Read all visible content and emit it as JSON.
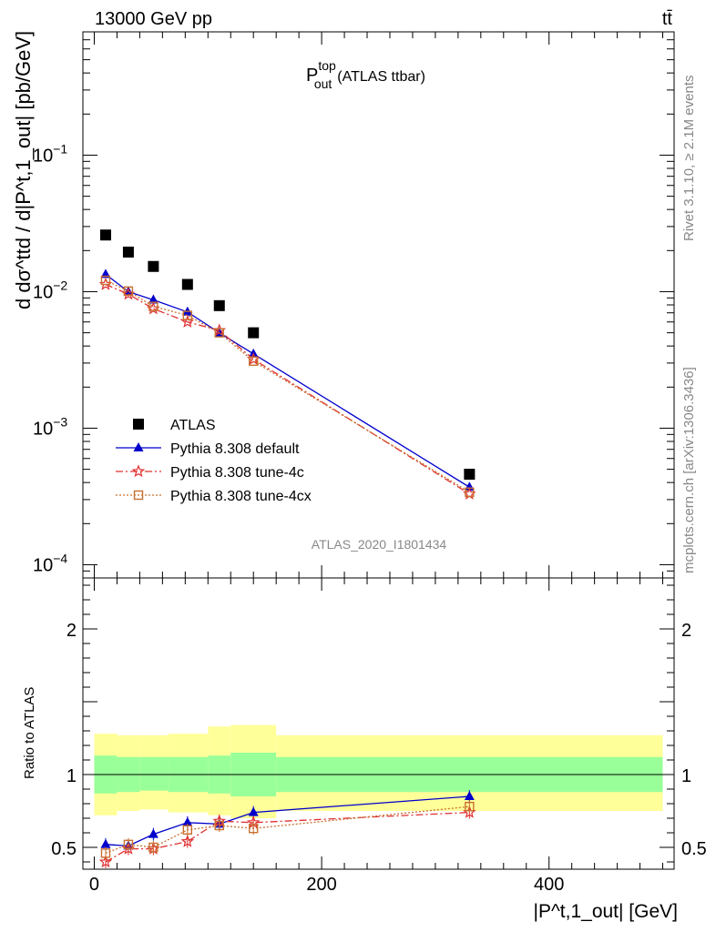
{
  "header": {
    "energy_label": "13000 GeV pp",
    "process_label": "tt̄"
  },
  "plot_title": {
    "main": "P",
    "superscript": "top",
    "subscript": "out",
    "rest": "(ATLAS ttbar)"
  },
  "side_labels": {
    "rivet": "Rivet 3.1.10, ≥ 2.1M events",
    "mcplots": "mcplots.cern.ch [arXiv:1306.3436]"
  },
  "analysis_id": "ATLAS_2020_I1801434",
  "axes": {
    "upper_ylabel": "d dσ^ttd / d|P^t,1_out| [pb/GeV]",
    "ratio_ylabel": "Ratio to ATLAS",
    "xlabel": "|P^t,1_out| [GeV]"
  },
  "chart_data": [
    {
      "type": "line",
      "panel": "main",
      "yscale": "log",
      "xlim": [
        -10,
        510
      ],
      "ylim": [
        8e-05,
        0.8
      ],
      "x_ticks": [
        0,
        200,
        400
      ],
      "y_ticks": [
        {
          "value": 0.0001,
          "base": "10",
          "exp": "−4"
        },
        {
          "value": 0.001,
          "base": "10",
          "exp": "−3"
        },
        {
          "value": 0.01,
          "base": "10",
          "exp": "−2"
        },
        {
          "value": 0.1,
          "base": "10",
          "exp": "−1"
        }
      ],
      "legend_position": "lower-left",
      "series": [
        {
          "name": "ATLAS",
          "marker": "square",
          "color": "#000000",
          "x": [
            10,
            30,
            52,
            82,
            110,
            140,
            330
          ],
          "y": [
            0.026,
            0.0195,
            0.0153,
            0.0113,
            0.0079,
            0.005,
            0.00046
          ]
        },
        {
          "name": "Pythia 8.308 default",
          "marker": "triangle",
          "color": "#0000cc",
          "line": "solid",
          "x": [
            10,
            30,
            52,
            82,
            110,
            140,
            330
          ],
          "y": [
            0.0134,
            0.01,
            0.0087,
            0.0071,
            0.005,
            0.0035,
            0.00037
          ]
        },
        {
          "name": "Pythia 8.308 tune-4c",
          "marker": "star",
          "color": "#e03030",
          "line": "dashdot",
          "x": [
            10,
            30,
            52,
            82,
            110,
            140,
            330
          ],
          "y": [
            0.0113,
            0.0096,
            0.0075,
            0.006,
            0.0052,
            0.0032,
            0.00033
          ]
        },
        {
          "name": "Pythia 8.308 tune-4cx",
          "marker": "open-square",
          "color": "#c87030",
          "line": "dotted",
          "x": [
            10,
            30,
            52,
            82,
            110,
            140,
            330
          ],
          "y": [
            0.0121,
            0.0101,
            0.0078,
            0.0067,
            0.005,
            0.0031,
            0.00034
          ]
        }
      ]
    },
    {
      "type": "line",
      "panel": "ratio",
      "yscale": "linear",
      "xlim": [
        -10,
        510
      ],
      "ylim": [
        0.35,
        2.35
      ],
      "x_ticks": [
        0,
        200,
        400
      ],
      "y_ticks": [
        0.5,
        1,
        2
      ],
      "reference_line": 1,
      "bands": {
        "x_edges": [
          0,
          20,
          40,
          65,
          100,
          120,
          160,
          500
        ],
        "inner_low": [
          0.87,
          0.88,
          0.89,
          0.88,
          0.87,
          0.85,
          0.88
        ],
        "inner_high": [
          1.13,
          1.12,
          1.12,
          1.12,
          1.13,
          1.15,
          1.12
        ],
        "outer_low": [
          0.72,
          0.75,
          0.76,
          0.74,
          0.72,
          0.7,
          0.75
        ],
        "outer_high": [
          1.28,
          1.27,
          1.27,
          1.28,
          1.33,
          1.34,
          1.27
        ],
        "inner_color": "#99ff99",
        "outer_color": "#ffff99"
      },
      "series": [
        {
          "name": "Pythia 8.308 default",
          "marker": "triangle",
          "color": "#0000cc",
          "line": "solid",
          "x": [
            10,
            30,
            52,
            82,
            110,
            140,
            330
          ],
          "y": [
            0.52,
            0.51,
            0.59,
            0.67,
            0.66,
            0.74,
            0.85
          ]
        },
        {
          "name": "Pythia 8.308 tune-4c",
          "marker": "star",
          "color": "#e03030",
          "line": "dashdot",
          "x": [
            10,
            30,
            52,
            82,
            110,
            140,
            330
          ],
          "y": [
            0.4,
            0.49,
            0.49,
            0.54,
            0.68,
            0.67,
            0.74
          ]
        },
        {
          "name": "Pythia 8.308 tune-4cx",
          "marker": "open-square",
          "color": "#c87030",
          "line": "dotted",
          "x": [
            10,
            30,
            52,
            82,
            110,
            140,
            330
          ],
          "y": [
            0.46,
            0.52,
            0.5,
            0.62,
            0.65,
            0.63,
            0.78
          ]
        }
      ]
    }
  ]
}
